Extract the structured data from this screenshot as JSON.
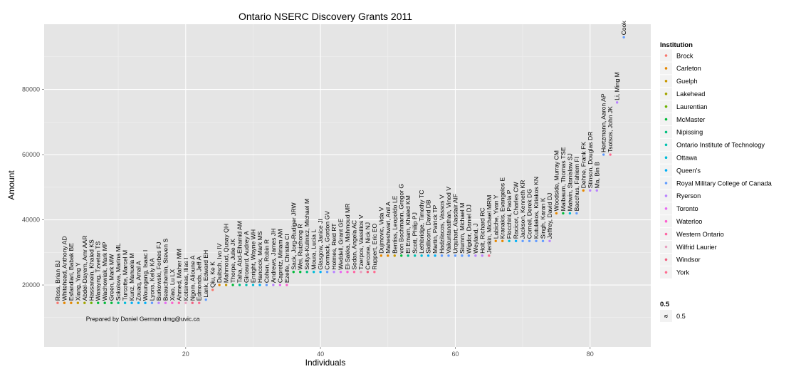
{
  "chart_data": {
    "type": "scatter",
    "title": "Ontario NSERC Discovery Grants 2011",
    "xlabel": "Individuals",
    "ylabel": "Amount",
    "xlim": [
      -1,
      89
    ],
    "ylim": [
      1000,
      100000
    ],
    "x_ticks": [
      20,
      40,
      60,
      80
    ],
    "y_ticks": [
      20000,
      40000,
      60000,
      80000
    ],
    "x_tick_labels": [
      "20",
      "40",
      "60",
      "80"
    ],
    "y_tick_labels": [
      "20000",
      "40000",
      "60000",
      "80000"
    ],
    "grid": true,
    "legend_position": "right",
    "annotation": "Prepared by Daniel German dmg@uvic.ca",
    "legend": {
      "title": "Institution",
      "items": [
        {
          "name": "Brock",
          "color": "#F8766D"
        },
        {
          "name": "Carleton",
          "color": "#E58700"
        },
        {
          "name": "Guelph",
          "color": "#C99800"
        },
        {
          "name": "Lakehead",
          "color": "#A3A500"
        },
        {
          "name": "Laurentian",
          "color": "#6BB100"
        },
        {
          "name": "McMaster",
          "color": "#00BA38"
        },
        {
          "name": "Nipissing",
          "color": "#00BF7D"
        },
        {
          "name": "Ontario Institute of Technology",
          "color": "#00C0AF"
        },
        {
          "name": "Ottawa",
          "color": "#00BCD8"
        },
        {
          "name": "Queen's",
          "color": "#00B0F6"
        },
        {
          "name": "Royal Military College of Canada",
          "color": "#619CFF"
        },
        {
          "name": "Ryerson",
          "color": "#B983FF"
        },
        {
          "name": "Toronto",
          "color": "#E76BF3"
        },
        {
          "name": "Waterloo",
          "color": "#FD61D1"
        },
        {
          "name": "Western Ontario",
          "color": "#FF67A4"
        },
        {
          "name": "Wilfrid Laurier",
          "color": "#E8A0C0"
        },
        {
          "name": "Windsor",
          "color": "#F06080"
        },
        {
          "name": "York",
          "color": "#FF6C91"
        }
      ]
    },
    "size_legend": {
      "title": "0.5",
      "symbol": "a",
      "label": "0.5"
    },
    "points": [
      {
        "x": 1,
        "y": 14500,
        "label": "Ross, Brian BJ",
        "color": "#F8766D"
      },
      {
        "x": 2,
        "y": 14500,
        "label": "Whitehead, Anthony AD",
        "color": "#E58700"
      },
      {
        "x": 3,
        "y": 14500,
        "label": "Esfandiari, Babak BE",
        "color": "#E58700"
      },
      {
        "x": 4,
        "y": 14500,
        "label": "Xiang, Yang Y",
        "color": "#C99800"
      },
      {
        "x": 5,
        "y": 14500,
        "label": "Abdel-Dayem, Amr AAR",
        "color": "#A3A500"
      },
      {
        "x": 6,
        "y": 14500,
        "label": "Hassanein, Khaled KS",
        "color": "#6BB100"
      },
      {
        "x": 7,
        "y": 14500,
        "label": "Wassyng, Tzvetan TS",
        "color": "#00BA38"
      },
      {
        "x": 8,
        "y": 14500,
        "label": "Wachowiak, Mark MP",
        "color": "#00BA38"
      },
      {
        "x": 9,
        "y": 14500,
        "label": "Green, Mark MW",
        "color": "#00BA38"
      },
      {
        "x": 10,
        "y": 14500,
        "label": "Sokolova, Marina ML",
        "color": "#00BF7D"
      },
      {
        "x": 11,
        "y": 14500,
        "label": "Turcotte, Marcel M",
        "color": "#00BCD8"
      },
      {
        "x": 12,
        "y": 14500,
        "label": "Kunz, Manuela M",
        "color": "#00B0F6"
      },
      {
        "x": 13,
        "y": 14500,
        "label": "Zouaq, Amal A",
        "color": "#00B0F6"
      },
      {
        "x": 14,
        "y": 14500,
        "label": "Woungang, Isaac I",
        "color": "#00B0F6"
      },
      {
        "x": 15,
        "y": 14500,
        "label": "Lyons, Kelly KA",
        "color": "#619CFF"
      },
      {
        "x": 16,
        "y": 14500,
        "label": "Burkowski, Forbes FJ",
        "color": "#B983FF"
      },
      {
        "x": 17,
        "y": 14500,
        "label": "Beauchemin, Steven S",
        "color": "#E76BF3"
      },
      {
        "x": 18,
        "y": 14500,
        "label": "Xiao, Lu LX",
        "color": "#FD61D1"
      },
      {
        "x": 19,
        "y": 14500,
        "label": "Ahmed, Maher MM",
        "color": "#FF67A4"
      },
      {
        "x": 20,
        "y": 14500,
        "label": "Kotsireas, Ilias I",
        "color": "#E8A0C0"
      },
      {
        "x": 21,
        "y": 14500,
        "label": "Ngom, Alioune A",
        "color": "#F06080"
      },
      {
        "x": 22,
        "y": 14500,
        "label": "Edmonds, Jeff A",
        "color": "#FF6C91"
      },
      {
        "x": 23,
        "y": 15500,
        "label": "Lank, Edward EH",
        "color": "#619CFF"
      },
      {
        "x": 24,
        "y": 18500,
        "label": "Qiu, Ke K",
        "color": "#F8766D"
      },
      {
        "x": 25,
        "y": 20000,
        "label": "Duitsch, Ivo IV",
        "color": "#E58700"
      },
      {
        "x": 26,
        "y": 20000,
        "label": "Mahmoud, Qusay QH",
        "color": "#C99800"
      },
      {
        "x": 27,
        "y": 20000,
        "label": "Thorpe, Julie JK",
        "color": "#00BA38"
      },
      {
        "x": 28,
        "y": 20000,
        "label": "Taha, Abd-Elhamid AM",
        "color": "#00BF7D"
      },
      {
        "x": 29,
        "y": 20000,
        "label": "Giroaurd, Audrey A",
        "color": "#00C0AF"
      },
      {
        "x": 30,
        "y": 20000,
        "label": "Enright, Wayne WH",
        "color": "#00BCD8"
      },
      {
        "x": 31,
        "y": 20000,
        "label": "Hancock, Mark MS",
        "color": "#00B0F6"
      },
      {
        "x": 32,
        "y": 20000,
        "label": "Cohen, Robin R",
        "color": "#619CFF"
      },
      {
        "x": 33,
        "y": 20000,
        "label": "Andrews, James JH",
        "color": "#B983FF"
      },
      {
        "x": 34,
        "y": 20000,
        "label": "Capretz, Miriam AM",
        "color": "#E76BF3"
      },
      {
        "x": 35,
        "y": 20000,
        "label": "Ezeife, Christie CI",
        "color": "#FD61D1"
      },
      {
        "x": 36,
        "y": 24000,
        "label": "Sack, Jorg-Rudiger JRW",
        "color": "#00BA38"
      },
      {
        "x": 37,
        "y": 24000,
        "label": "Wei, Ruizhong R",
        "color": "#00BA38"
      },
      {
        "x": 38,
        "y": 24000,
        "label": "Soltys-Kulinicz, Michael M",
        "color": "#00BF7D"
      },
      {
        "x": 39,
        "y": 24000,
        "label": "Moura, Lucia L",
        "color": "#00BCD8"
      },
      {
        "x": 40,
        "y": 24000,
        "label": "Glasgow, Janice JI",
        "color": "#00B0F6"
      },
      {
        "x": 41,
        "y": 24000,
        "label": "Cormack, Gordon GV",
        "color": "#619CFF"
      },
      {
        "x": 42,
        "y": 24000,
        "label": "Holmes, Reid RT",
        "color": "#B983FF"
      },
      {
        "x": 43,
        "y": 24000,
        "label": "Weddell, Grant GE",
        "color": "#E76BF3"
      },
      {
        "x": 44,
        "y": 24000,
        "label": "El-Sakka, Mahmoud MR",
        "color": "#FD61D1"
      },
      {
        "x": 45,
        "y": 24000,
        "label": "Sodan, Angela AC",
        "color": "#FF67A4"
      },
      {
        "x": 46,
        "y": 24000,
        "label": "Tzerpos, Vassilios V",
        "color": "#E8A0C0"
      },
      {
        "x": 47,
        "y": 24000,
        "label": "Cercone, Nick NJ",
        "color": "#F06080"
      },
      {
        "x": 48,
        "y": 24000,
        "label": "Ruppert, Eric EO",
        "color": "#FF6C91"
      },
      {
        "x": 49,
        "y": 29000,
        "label": "Dujmovic, Vida V",
        "color": "#E58700"
      },
      {
        "x": 50,
        "y": 29000,
        "label": "Maheshwari, Anil A",
        "color": "#E58700"
      },
      {
        "x": 51,
        "y": 29000,
        "label": "Bentiss, Leopoldo LE",
        "color": "#C99800"
      },
      {
        "x": 52,
        "y": 29000,
        "label": "von Bochmann, Gregor G",
        "color": "#00BA38"
      },
      {
        "x": 53,
        "y": 29000,
        "label": "El Emam, Khaled KM",
        "color": "#00BF7D"
      },
      {
        "x": 54,
        "y": 29000,
        "label": "Scott, Philip PJ",
        "color": "#00C0AF"
      },
      {
        "x": 55,
        "y": 29000,
        "label": "Lethbridge, Timothy TC",
        "color": "#00BCD8"
      },
      {
        "x": 56,
        "y": 29000,
        "label": "Skillicorn, David DB",
        "color": "#00B0F6"
      },
      {
        "x": 57,
        "y": 29000,
        "label": "Martin, Patrick TP",
        "color": "#00B0F6"
      },
      {
        "x": 58,
        "y": 29000,
        "label": "Hadzilacos, Vassos V",
        "color": "#619CFF"
      },
      {
        "x": 59,
        "y": 29000,
        "label": "Vaikuntanathan, Vinod V",
        "color": "#619CFF"
      },
      {
        "x": 60,
        "y": 29000,
        "label": "Urquhart, Alasdair AIF",
        "color": "#619CFF"
      },
      {
        "x": 61,
        "y": 29000,
        "label": "Stumm, Michael M",
        "color": "#619CFF"
      },
      {
        "x": 62,
        "y": 29000,
        "label": "Wigdor, Daniel DJ",
        "color": "#619CFF"
      },
      {
        "x": 63,
        "y": 29000,
        "label": "Weyland, J",
        "color": "#B983FF"
      },
      {
        "x": 64,
        "y": 29000,
        "label": "Holt, Richard RC",
        "color": "#B983FF"
      },
      {
        "x": 65,
        "y": 29000,
        "label": "Jenkin, Michael MRM",
        "color": "#FF6C91"
      },
      {
        "x": 66,
        "y": 33500,
        "label": "Labiche, Yvan Y",
        "color": "#E58700"
      },
      {
        "x": 67,
        "y": 33500,
        "label": "Kranakis, Evangelos E",
        "color": "#E58700"
      },
      {
        "x": 68,
        "y": 33500,
        "label": "Flocchini, Paola P",
        "color": "#00BCD8"
      },
      {
        "x": 69,
        "y": 33500,
        "label": "Racicot, Charles CW",
        "color": "#00B0F6"
      },
      {
        "x": 70,
        "y": 33500,
        "label": "Jackson, Kenneth KR",
        "color": "#619CFF"
      },
      {
        "x": 71,
        "y": 33500,
        "label": "Corneil, Derek DG",
        "color": "#619CFF"
      },
      {
        "x": 72,
        "y": 33500,
        "label": "Kutulakos, Kiriakos KN",
        "color": "#619CFF"
      },
      {
        "x": 73,
        "y": 33500,
        "label": "Singh, Karan K",
        "color": "#619CFF"
      },
      {
        "x": 74,
        "y": 33500,
        "label": "Jeffrey, David DJ",
        "color": "#B983FF"
      },
      {
        "x": 75,
        "y": 42000,
        "label": "Woodside, Murray CM",
        "color": "#E58700"
      },
      {
        "x": 76,
        "y": 42000,
        "label": "Maibaum, Thomas TSE",
        "color": "#00BA38"
      },
      {
        "x": 77,
        "y": 42000,
        "label": "Matwin, Stanislaw SJ",
        "color": "#00BCD8"
      },
      {
        "x": 78,
        "y": 42000,
        "label": "Bacchus, Fahiem FI",
        "color": "#619CFF"
      },
      {
        "x": 79,
        "y": 49000,
        "label": "Dehne, Frank FK",
        "color": "#E58700"
      },
      {
        "x": 80,
        "y": 49000,
        "label": "Stinson, Douglas DR",
        "color": "#B983FF"
      },
      {
        "x": 81,
        "y": 49000,
        "label": "Ma, Bin B",
        "color": "#B983FF"
      },
      {
        "x": 82,
        "y": 60000,
        "label": "Hertzmann, Aaron AP",
        "color": "#619CFF"
      },
      {
        "x": 83,
        "y": 60000,
        "label": "Tsotsos, John JK",
        "color": "#FF6C91"
      },
      {
        "x": 84,
        "y": 76000,
        "label": "Li, Ming M",
        "color": "#B983FF"
      },
      {
        "x": 85,
        "y": 96000,
        "label": "Cook",
        "color": "#619CFF"
      }
    ]
  }
}
